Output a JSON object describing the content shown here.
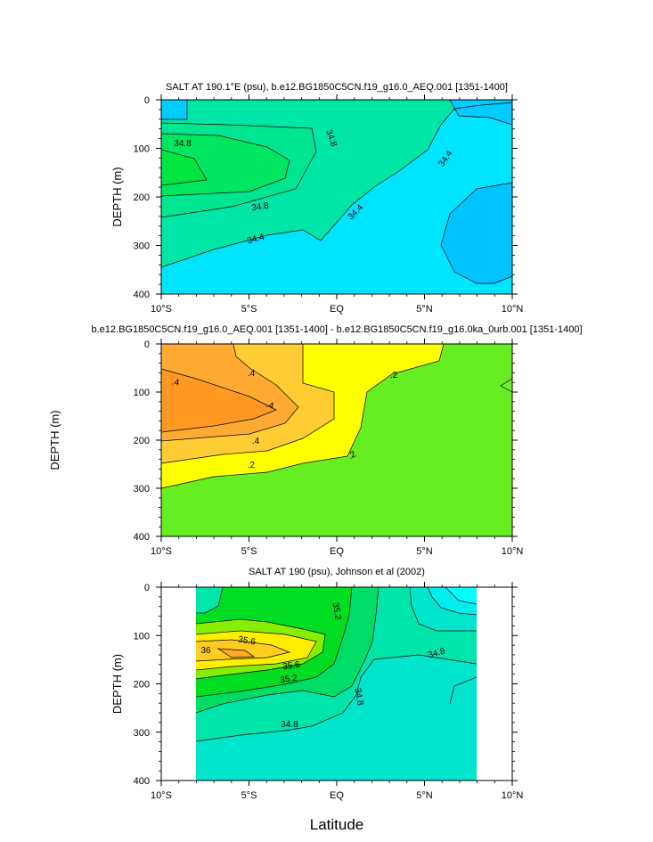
{
  "figure": {
    "xlabel": "Latitude",
    "x_ticks": [
      "10°S",
      "5°S",
      "EQ",
      "5°N",
      "10°N"
    ],
    "y_ticks": [
      "0",
      "100",
      "200",
      "300",
      "400"
    ]
  },
  "chart_data": [
    {
      "type": "contour",
      "title": "SALT AT 190.1°E (psu), b.e12.BG1850C5CN.f19_g16.0_AEQ.001 [1351-1400]",
      "ylabel": "DEPTH (m)",
      "xlim": [
        -10,
        10
      ],
      "ylim": [
        400,
        0
      ],
      "x_ticks": [
        "10°S",
        "5°S",
        "EQ",
        "5°N",
        "10°N"
      ],
      "y_ticks": [
        "0",
        "100",
        "200",
        "300",
        "400"
      ],
      "contour_labels": [
        "34.8",
        "34.8",
        "34.8",
        "34.4",
        "34.4",
        "34.4"
      ],
      "colors": {
        "low": "#00c4ff",
        "mid": "#00e5ff",
        "high": "#00e6a6",
        "max": "#00e640"
      }
    },
    {
      "type": "contour",
      "title": "b.e12.BG1850C5CN.f19_g16.0_AEQ.001 [1351-1400] - b.e12.BG1850C5CN.f19_g16.0ka_0urb.001 [1351-1400]",
      "ylabel": "DEPTH (m)",
      "xlim": [
        -10,
        10
      ],
      "ylim": [
        400,
        0
      ],
      "x_ticks": [
        "10°S",
        "5°S",
        "EQ",
        "5°N",
        "10°N"
      ],
      "y_ticks": [
        "0",
        "100",
        "200",
        "300",
        "400"
      ],
      "contour_labels": [
        ".4",
        ".4",
        ".4",
        ".4",
        ".2",
        ".2",
        ".2"
      ],
      "colors": {
        "low": "#66ee22",
        "mid": "#ffff00",
        "high": "#ffcc33",
        "max": "#ff9922"
      }
    },
    {
      "type": "contour",
      "title": "SALT AT 190 (psu), Johnson et al (2002)",
      "ylabel": "DEPTH (m)",
      "xlim": [
        -10,
        10
      ],
      "ylim": [
        400,
        0
      ],
      "x_ticks": [
        "10°S",
        "5°S",
        "EQ",
        "5°N",
        "10°N"
      ],
      "y_ticks": [
        "0",
        "100",
        "200",
        "300",
        "400"
      ],
      "contour_labels": [
        "35.2",
        "35.6",
        "36",
        "35.6",
        "35.2",
        "34.8",
        "34.8",
        "34.8"
      ],
      "colors": {
        "low": "#00e5ee",
        "mid": "#00e5aa",
        "high": "#00dd22",
        "max": "#ffee00"
      }
    }
  ]
}
